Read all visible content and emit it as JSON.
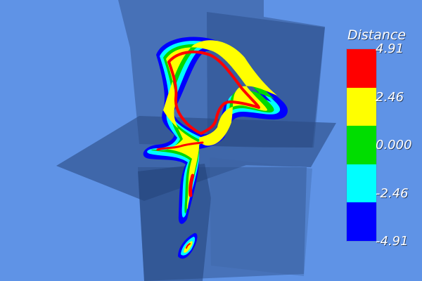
{
  "legend": {
    "title": "Distance",
    "ticks": [
      "4.91",
      "2.46",
      "0.000",
      "-2.46",
      "-4.91"
    ],
    "band_colors": [
      "#ff0000",
      "#ffff00",
      "#00dd00",
      "#00ffff",
      "#0000ff"
    ]
  },
  "scene_colors": {
    "background": "#5f93e6",
    "plane_primary": "#304f86",
    "plane_secondary": "#3b5d99",
    "outer_contour": "#0000ff",
    "cyan_contour": "#00ffff",
    "green_contour": "#00cc00",
    "yellow_contour": "#ffff00",
    "red_contour": "#ff0000"
  }
}
